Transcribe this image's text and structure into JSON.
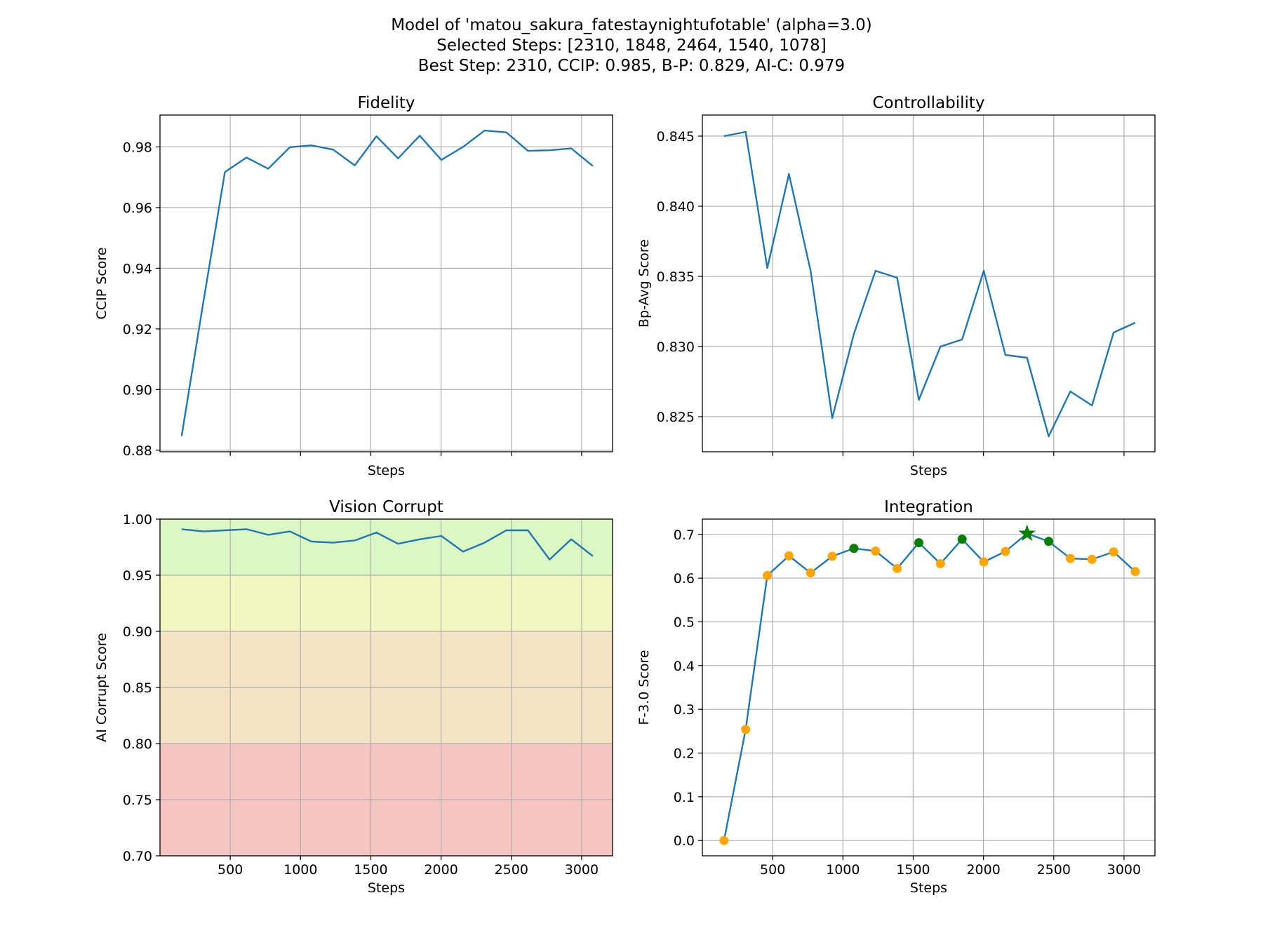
{
  "figure": {
    "title_lines": [
      "Model of 'matou_sakura_fatestaynightufotable' (alpha=3.0)",
      "Selected Steps: [2310, 1848, 2464, 1540, 1078]",
      "Best Step: 2310, CCIP: 0.985, B-P: 0.829, AI-C: 0.979"
    ]
  },
  "colors": {
    "line": "#1f77b4",
    "grid": "#b0b0b0",
    "marker_normal": "orange",
    "marker_selected": "green",
    "marker_best": "green",
    "band_good": "#dbf7c4",
    "band_ok": "#f2f7c0",
    "band_warn": "#f5e4c3",
    "band_bad": "#f5c6c1"
  },
  "chart_data": [
    {
      "id": "fidelity",
      "type": "line",
      "title": "Fidelity",
      "xlabel": "Steps",
      "ylabel": "CCIP Score",
      "xlim": [
        0,
        3220
      ],
      "ylim": [
        0.8795,
        0.9905
      ],
      "xticks": [
        500,
        1000,
        1500,
        2000,
        2500,
        3000
      ],
      "show_xtick_labels": false,
      "yticks": [
        0.88,
        0.9,
        0.92,
        0.94,
        0.96,
        0.98
      ],
      "ytick_labels": [
        "0.88",
        "0.90",
        "0.92",
        "0.94",
        "0.96",
        "0.98"
      ],
      "grid": true,
      "x": [
        154,
        308,
        462,
        616,
        770,
        924,
        1078,
        1232,
        1386,
        1540,
        1694,
        1848,
        2002,
        2156,
        2310,
        2464,
        2618,
        2772,
        2926,
        3080
      ],
      "y": [
        0.8847,
        0.9287,
        0.9717,
        0.9765,
        0.9728,
        0.9799,
        0.9805,
        0.9791,
        0.9739,
        0.9835,
        0.9762,
        0.9837,
        0.9757,
        0.98,
        0.9854,
        0.9848,
        0.9787,
        0.9789,
        0.9795,
        0.9737
      ]
    },
    {
      "id": "controllability",
      "type": "line",
      "title": "Controllability",
      "xlabel": "Steps",
      "ylabel": "Bp-Avg Score",
      "xlim": [
        0,
        3220
      ],
      "ylim": [
        0.8225,
        0.8465
      ],
      "xticks": [
        500,
        1000,
        1500,
        2000,
        2500,
        3000
      ],
      "show_xtick_labels": false,
      "yticks": [
        0.825,
        0.83,
        0.835,
        0.84,
        0.845
      ],
      "ytick_labels": [
        "0.825",
        "0.830",
        "0.835",
        "0.840",
        "0.845"
      ],
      "grid": true,
      "x": [
        154,
        308,
        462,
        616,
        770,
        924,
        1078,
        1232,
        1386,
        1540,
        1694,
        1848,
        2002,
        2156,
        2310,
        2464,
        2618,
        2772,
        2926,
        3080
      ],
      "y": [
        0.845,
        0.8453,
        0.8356,
        0.8423,
        0.8354,
        0.8249,
        0.8309,
        0.8354,
        0.8349,
        0.8262,
        0.83,
        0.8305,
        0.8354,
        0.8294,
        0.8292,
        0.8236,
        0.8268,
        0.8258,
        0.831,
        0.8317
      ]
    },
    {
      "id": "vision_corrupt",
      "type": "line",
      "title": "Vision Corrupt",
      "xlabel": "Steps",
      "ylabel": "AI Corrupt Score",
      "xlim": [
        0,
        3220
      ],
      "ylim": [
        0.7,
        1.0
      ],
      "xticks": [
        500,
        1000,
        1500,
        2000,
        2500,
        3000
      ],
      "xtick_labels": [
        "500",
        "1000",
        "1500",
        "2000",
        "2500",
        "3000"
      ],
      "show_xtick_labels": true,
      "yticks": [
        0.7,
        0.75,
        0.8,
        0.85,
        0.9,
        0.95,
        1.0
      ],
      "ytick_labels": [
        "0.70",
        "0.75",
        "0.80",
        "0.85",
        "0.90",
        "0.95",
        "1.00"
      ],
      "grid": true,
      "bands": [
        {
          "from": 0.95,
          "to": 1.0,
          "color": "band_good"
        },
        {
          "from": 0.9,
          "to": 0.95,
          "color": "band_ok"
        },
        {
          "from": 0.8,
          "to": 0.9,
          "color": "band_warn"
        },
        {
          "from": 0.7,
          "to": 0.8,
          "color": "band_bad"
        }
      ],
      "x": [
        154,
        308,
        462,
        616,
        770,
        924,
        1078,
        1232,
        1386,
        1540,
        1694,
        1848,
        2002,
        2156,
        2310,
        2464,
        2618,
        2772,
        2926,
        3080
      ],
      "y": [
        0.991,
        0.989,
        0.99,
        0.991,
        0.986,
        0.989,
        0.98,
        0.979,
        0.981,
        0.988,
        0.978,
        0.982,
        0.985,
        0.971,
        0.979,
        0.99,
        0.99,
        0.964,
        0.982,
        0.967
      ]
    },
    {
      "id": "integration",
      "type": "line",
      "title": "Integration",
      "xlabel": "Steps",
      "ylabel": "F-3.0 Score",
      "xlim": [
        0,
        3220
      ],
      "ylim": [
        -0.035,
        0.735
      ],
      "xticks": [
        500,
        1000,
        1500,
        2000,
        2500,
        3000
      ],
      "xtick_labels": [
        "500",
        "1000",
        "1500",
        "2000",
        "2500",
        "3000"
      ],
      "show_xtick_labels": true,
      "yticks": [
        0.0,
        0.1,
        0.2,
        0.3,
        0.4,
        0.5,
        0.6,
        0.7
      ],
      "ytick_labels": [
        "0.0",
        "0.1",
        "0.2",
        "0.3",
        "0.4",
        "0.5",
        "0.6",
        "0.7"
      ],
      "grid": true,
      "x": [
        154,
        308,
        462,
        616,
        770,
        924,
        1078,
        1232,
        1386,
        1540,
        1694,
        1848,
        2002,
        2156,
        2310,
        2464,
        2618,
        2772,
        2926,
        3080
      ],
      "y": [
        0.0,
        0.254,
        0.606,
        0.651,
        0.612,
        0.65,
        0.668,
        0.662,
        0.622,
        0.681,
        0.633,
        0.689,
        0.637,
        0.661,
        0.702,
        0.684,
        0.645,
        0.643,
        0.66,
        0.615
      ],
      "selected_steps": [
        1078,
        1540,
        1848,
        2464
      ],
      "best_step": 2310
    }
  ]
}
